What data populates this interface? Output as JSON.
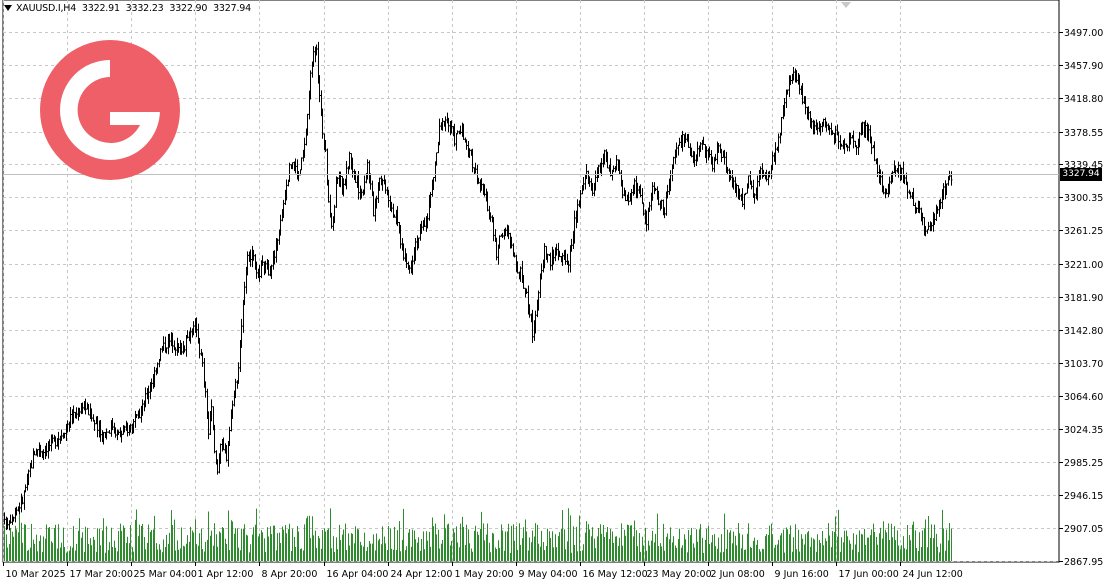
{
  "header": {
    "symbol": "XAUUSD.I,H4",
    "open": "3322.91",
    "high": "3332.23",
    "low": "3322.90",
    "close": "3327.94"
  },
  "current_price_label": "3327.94",
  "colors": {
    "background": "#ffffff",
    "grid": "#c8c8c8",
    "bars": "#000000",
    "volume": "#2e8b2e",
    "logo": "#ee5f68",
    "price_line": "#c0c0c0"
  },
  "chart_data": {
    "type": "ohlc-bar",
    "symbol": "XAUUSD.I",
    "timeframe": "H4",
    "ylim": [
      2867.95,
      3510
    ],
    "y_ticks": [
      "3497.00",
      "3457.90",
      "3418.80",
      "3378.55",
      "3339.45",
      "3300.35",
      "3261.25",
      "3221.00",
      "3181.90",
      "3142.80",
      "3103.70",
      "3064.60",
      "3024.35",
      "2985.25",
      "2946.15",
      "2907.05",
      "2867.95"
    ],
    "x_ticks": [
      "10 Mar 2025",
      "17 Mar 20:00",
      "25 Mar 04:00",
      "1 Apr 12:00",
      "8 Apr 20:00",
      "16 Apr 04:00",
      "24 Apr 12:00",
      "1 May 20:00",
      "9 May 04:00",
      "16 May 12:00",
      "23 May 20:00",
      "2 Jun 08:00",
      "9 Jun 16:00",
      "17 Jun 00:00",
      "24 Jun 12:00"
    ],
    "close_path": [
      [
        0,
        2912
      ],
      [
        6,
        2925
      ],
      [
        12,
        2940
      ],
      [
        16,
        2970
      ],
      [
        20,
        2998
      ],
      [
        26,
        3002
      ],
      [
        32,
        3008
      ],
      [
        38,
        3020
      ],
      [
        44,
        3038
      ],
      [
        48,
        3042
      ],
      [
        52,
        3056
      ],
      [
        56,
        3046
      ],
      [
        60,
        3032
      ],
      [
        64,
        3018
      ],
      [
        68,
        3022
      ],
      [
        72,
        3030
      ],
      [
        76,
        3018
      ],
      [
        80,
        3022
      ],
      [
        84,
        3030
      ],
      [
        88,
        3035
      ],
      [
        92,
        3050
      ],
      [
        96,
        3072
      ],
      [
        100,
        3092
      ],
      [
        104,
        3118
      ],
      [
        108,
        3128
      ],
      [
        112,
        3130
      ],
      [
        116,
        3120
      ],
      [
        120,
        3125
      ],
      [
        124,
        3140
      ],
      [
        128,
        3148
      ],
      [
        130,
        3120
      ],
      [
        132,
        3100
      ],
      [
        134,
        3064
      ],
      [
        136,
        3020
      ],
      [
        138,
        3048
      ],
      [
        140,
        2998
      ],
      [
        142,
        2978
      ],
      [
        144,
        3008
      ],
      [
        146,
        2998
      ],
      [
        148,
        2994
      ],
      [
        150,
        3025
      ],
      [
        152,
        3060
      ],
      [
        154,
        3078
      ],
      [
        156,
        3100
      ],
      [
        158,
        3150
      ],
      [
        160,
        3190
      ],
      [
        162,
        3225
      ],
      [
        164,
        3232
      ],
      [
        166,
        3225
      ],
      [
        168,
        3205
      ],
      [
        172,
        3218
      ],
      [
        176,
        3215
      ],
      [
        180,
        3230
      ],
      [
        184,
        3270
      ],
      [
        188,
        3320
      ],
      [
        192,
        3345
      ],
      [
        196,
        3325
      ],
      [
        200,
        3360
      ],
      [
        202,
        3400
      ],
      [
        204,
        3445
      ],
      [
        206,
        3480
      ],
      [
        208,
        3470
      ],
      [
        210,
        3420
      ],
      [
        212,
        3380
      ],
      [
        214,
        3350
      ],
      [
        216,
        3300
      ],
      [
        218,
        3260
      ],
      [
        222,
        3330
      ],
      [
        226,
        3310
      ],
      [
        230,
        3350
      ],
      [
        234,
        3320
      ],
      [
        238,
        3305
      ],
      [
        242,
        3340
      ],
      [
        246,
        3285
      ],
      [
        250,
        3325
      ],
      [
        254,
        3315
      ],
      [
        258,
        3290
      ],
      [
        262,
        3270
      ],
      [
        266,
        3230
      ],
      [
        270,
        3215
      ],
      [
        274,
        3248
      ],
      [
        278,
        3260
      ],
      [
        282,
        3280
      ],
      [
        286,
        3325
      ],
      [
        290,
        3380
      ],
      [
        294,
        3395
      ],
      [
        298,
        3380
      ],
      [
        300,
        3370
      ],
      [
        304,
        3380
      ],
      [
        308,
        3360
      ],
      [
        312,
        3340
      ],
      [
        316,
        3320
      ],
      [
        320,
        3300
      ],
      [
        324,
        3280
      ],
      [
        328,
        3235
      ],
      [
        332,
        3260
      ],
      [
        336,
        3255
      ],
      [
        340,
        3225
      ],
      [
        344,
        3210
      ],
      [
        348,
        3185
      ],
      [
        352,
        3140
      ],
      [
        356,
        3185
      ],
      [
        360,
        3240
      ],
      [
        364,
        3225
      ],
      [
        368,
        3238
      ],
      [
        372,
        3225
      ],
      [
        376,
        3225
      ],
      [
        380,
        3270
      ],
      [
        384,
        3300
      ],
      [
        388,
        3330
      ],
      [
        392,
        3310
      ],
      [
        396,
        3335
      ],
      [
        400,
        3352
      ],
      [
        404,
        3325
      ],
      [
        408,
        3340
      ],
      [
        412,
        3310
      ],
      [
        416,
        3295
      ],
      [
        420,
        3318
      ],
      [
        424,
        3300
      ],
      [
        428,
        3270
      ],
      [
        432,
        3315
      ],
      [
        436,
        3298
      ],
      [
        440,
        3283
      ],
      [
        444,
        3328
      ],
      [
        448,
        3358
      ],
      [
        452,
        3370
      ],
      [
        456,
        3365
      ],
      [
        460,
        3345
      ],
      [
        464,
        3368
      ],
      [
        468,
        3352
      ],
      [
        472,
        3340
      ],
      [
        476,
        3358
      ],
      [
        480,
        3345
      ],
      [
        484,
        3320
      ],
      [
        488,
        3310
      ],
      [
        492,
        3295
      ],
      [
        496,
        3320
      ],
      [
        500,
        3300
      ],
      [
        504,
        3330
      ],
      [
        508,
        3318
      ],
      [
        512,
        3345
      ],
      [
        516,
        3370
      ],
      [
        520,
        3410
      ],
      [
        524,
        3440
      ],
      [
        528,
        3445
      ],
      [
        532,
        3420
      ],
      [
        536,
        3395
      ],
      [
        540,
        3385
      ],
      [
        544,
        3390
      ],
      [
        548,
        3385
      ],
      [
        552,
        3380
      ],
      [
        556,
        3370
      ],
      [
        560,
        3360
      ],
      [
        564,
        3370
      ],
      [
        568,
        3355
      ],
      [
        572,
        3385
      ],
      [
        576,
        3375
      ],
      [
        580,
        3350
      ],
      [
        584,
        3318
      ],
      [
        588,
        3305
      ],
      [
        592,
        3330
      ],
      [
        596,
        3335
      ],
      [
        600,
        3320
      ],
      [
        604,
        3305
      ],
      [
        608,
        3290
      ],
      [
        612,
        3270
      ],
      [
        616,
        3262
      ],
      [
        620,
        3280
      ],
      [
        624,
        3295
      ],
      [
        628,
        3318
      ],
      [
        630,
        3328
      ]
    ],
    "volume_seed": 17
  }
}
